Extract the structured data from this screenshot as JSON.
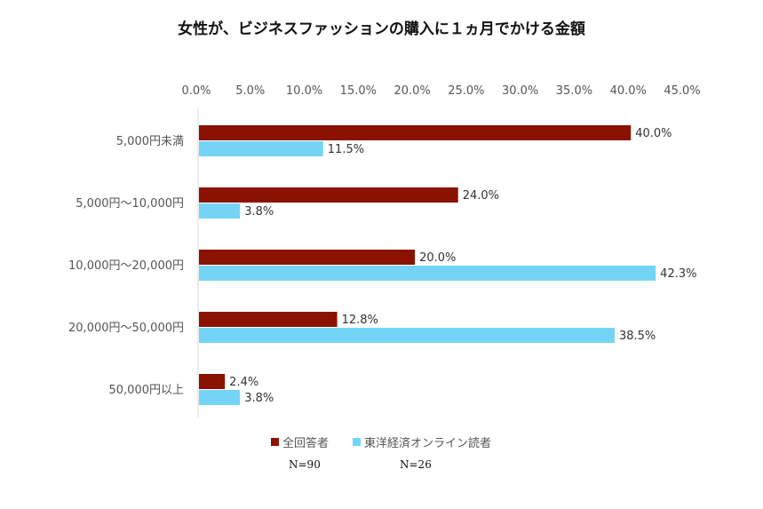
{
  "chart_data": {
    "type": "bar",
    "orientation": "horizontal",
    "title": "女性が、ビジネスファッションの購入に１ヵ月でかける金額",
    "categories": [
      "5,000円未満",
      "5,000円～10,000円",
      "10,000円～20,000円",
      "20,000円～50,000円",
      "50,000円以上"
    ],
    "series": [
      {
        "name": "全回答者",
        "color": "#8b1200",
        "values": [
          40.0,
          24.0,
          20.0,
          12.8,
          2.4
        ],
        "n_label": "N=90"
      },
      {
        "name": "東洋経済オンライン読者",
        "color": "#74d4f5",
        "values": [
          11.5,
          3.8,
          42.3,
          38.5,
          3.8
        ],
        "n_label": "N=26"
      }
    ],
    "xlim": [
      0,
      45
    ],
    "xticks": [
      "0.0%",
      "5.0%",
      "10.0%",
      "15.0%",
      "20.0%",
      "25.0%",
      "30.0%",
      "35.0%",
      "40.0%",
      "45.0%"
    ],
    "xaxis_position": "top",
    "grid": false,
    "legend_position": "bottom"
  }
}
